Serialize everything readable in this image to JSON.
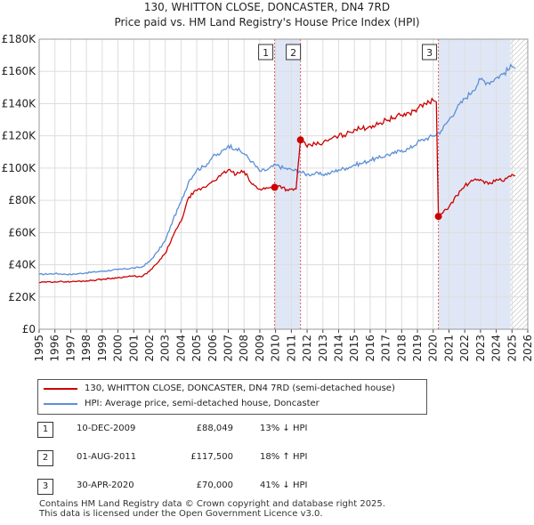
{
  "chart_data": {
    "type": "line",
    "title": "130, WHITTON CLOSE, DONCASTER, DN4 7RD",
    "subtitle": "Price paid vs. HM Land Registry's House Price Index (HPI)",
    "xlabel": "",
    "ylabel": "",
    "xlim": [
      1995,
      2026
    ],
    "ylim": [
      0,
      180000
    ],
    "x_ticks": [
      1995,
      1996,
      1997,
      1998,
      1999,
      2000,
      2001,
      2002,
      2003,
      2004,
      2005,
      2006,
      2007,
      2008,
      2009,
      2010,
      2011,
      2012,
      2013,
      2014,
      2015,
      2016,
      2017,
      2018,
      2019,
      2020,
      2021,
      2022,
      2023,
      2024,
      2025,
      2026
    ],
    "y_ticks": [
      {
        "value": 0,
        "label": "£0"
      },
      {
        "value": 20000,
        "label": "£20K"
      },
      {
        "value": 40000,
        "label": "£40K"
      },
      {
        "value": 60000,
        "label": "£60K"
      },
      {
        "value": 80000,
        "label": "£80K"
      },
      {
        "value": 100000,
        "label": "£100K"
      },
      {
        "value": 120000,
        "label": "£120K"
      },
      {
        "value": 140000,
        "label": "£140K"
      },
      {
        "value": 160000,
        "label": "£160K"
      },
      {
        "value": 180000,
        "label": "£180K"
      }
    ],
    "grid": true,
    "series": [
      {
        "name": "130, WHITTON CLOSE, DONCASTER, DN4 7RD (semi-detached house)",
        "color": "#cc0000",
        "x": [
          1995,
          1996,
          1997,
          1998,
          1999,
          2000,
          2001,
          2001.5,
          2002,
          2002.5,
          2003,
          2003.5,
          2004,
          2004.5,
          2005,
          2005.5,
          2006,
          2006.5,
          2007,
          2007.5,
          2008,
          2008.5,
          2009,
          2009.5,
          2009.94,
          2010.3,
          2010.8,
          2011.3,
          2011.58,
          2011.6,
          2012,
          2012.5,
          2013,
          2013.5,
          2014,
          2014.5,
          2015,
          2015.5,
          2016,
          2016.5,
          2017,
          2017.5,
          2018,
          2018.5,
          2019,
          2019.5,
          2020.0,
          2020.2,
          2020.33,
          2020.6,
          2021,
          2021.5,
          2022,
          2022.5,
          2023,
          2023.5,
          2024,
          2024.5,
          2025,
          2025.2
        ],
        "values": [
          29000,
          29500,
          29500,
          30000,
          31000,
          32000,
          33000,
          32500,
          36000,
          41000,
          47000,
          58000,
          67000,
          82000,
          86000,
          88000,
          92000,
          95000,
          99000,
          96000,
          98000,
          90000,
          87000,
          87500,
          88049,
          89000,
          86000,
          87000,
          117500,
          118000,
          113000,
          115000,
          115500,
          118000,
          120000,
          121000,
          124000,
          124500,
          126000,
          127000,
          130000,
          131000,
          133000,
          134000,
          137000,
          140000,
          142000,
          141000,
          70000,
          72000,
          76000,
          83000,
          89000,
          92000,
          93000,
          90000,
          93000,
          92000,
          96000,
          95000
        ]
      },
      {
        "name": "HPI: Average price, semi-detached house, Doncaster",
        "color": "#5b8fd6",
        "x": [
          1995,
          1996,
          1997,
          1998,
          1999,
          2000,
          2001,
          2001.5,
          2002,
          2002.5,
          2003,
          2003.5,
          2004,
          2004.5,
          2005,
          2005.5,
          2006,
          2006.5,
          2007,
          2007.5,
          2008,
          2008.5,
          2009,
          2009.5,
          2010,
          2010.5,
          2011,
          2011.5,
          2012,
          2012.5,
          2013,
          2013.5,
          2014,
          2014.5,
          2015,
          2015.5,
          2016,
          2016.5,
          2017,
          2017.5,
          2018,
          2018.5,
          2019,
          2019.5,
          2020,
          2020.5,
          2021,
          2021.5,
          2022,
          2022.5,
          2023,
          2023.5,
          2024,
          2024.5,
          2025,
          2025.2
        ],
        "values": [
          34000,
          34500,
          34000,
          35000,
          36000,
          37000,
          38000,
          38500,
          42000,
          48000,
          55000,
          68000,
          79000,
          92000,
          99000,
          101000,
          107000,
          109000,
          114000,
          112000,
          109000,
          104000,
          98000,
          99000,
          102000,
          100000,
          99000,
          98000,
          96000,
          96500,
          96000,
          97000,
          99000,
          100000,
          102000,
          103000,
          105000,
          106000,
          108000,
          109000,
          111000,
          112000,
          116000,
          118000,
          120000,
          123000,
          130000,
          137000,
          143000,
          148000,
          155000,
          153000,
          156000,
          159000,
          163000,
          162000
        ]
      }
    ],
    "markers": [
      {
        "label": "1",
        "x": 2009.94,
        "value": 88049
      },
      {
        "label": "2",
        "x": 2011.58,
        "value": 117500
      },
      {
        "label": "3",
        "x": 2020.33,
        "value": 70000
      }
    ],
    "shaded_spans": [
      {
        "x": [
          2009.94,
          2011.58
        ]
      },
      {
        "x": [
          2020.33,
          2024.9
        ]
      }
    ],
    "hatched_span": {
      "x": [
        2024.9,
        2026
      ]
    }
  },
  "legend": {
    "red_label": "130, WHITTON CLOSE, DONCASTER, DN4 7RD (semi-detached house)",
    "blue_label": "HPI: Average price, semi-detached house, Doncaster"
  },
  "transactions": [
    {
      "num": "1",
      "date": "10-DEC-2009",
      "price": "£88,049",
      "hpi": "13% ↓ HPI"
    },
    {
      "num": "2",
      "date": "01-AUG-2011",
      "price": "£117,500",
      "hpi": "18% ↑ HPI"
    },
    {
      "num": "3",
      "date": "30-APR-2020",
      "price": "£70,000",
      "hpi": "41% ↓ HPI"
    }
  ],
  "footer": {
    "line1": "Contains HM Land Registry data © Crown copyright and database right 2025.",
    "line2": "This data is licensed under the Open Government Licence v3.0."
  },
  "colors": {
    "red": "#cc0000",
    "blue": "#5b8fd6",
    "shade": "#dfe7f6",
    "grid": "#dddddd",
    "marker_line": "#e06060"
  }
}
